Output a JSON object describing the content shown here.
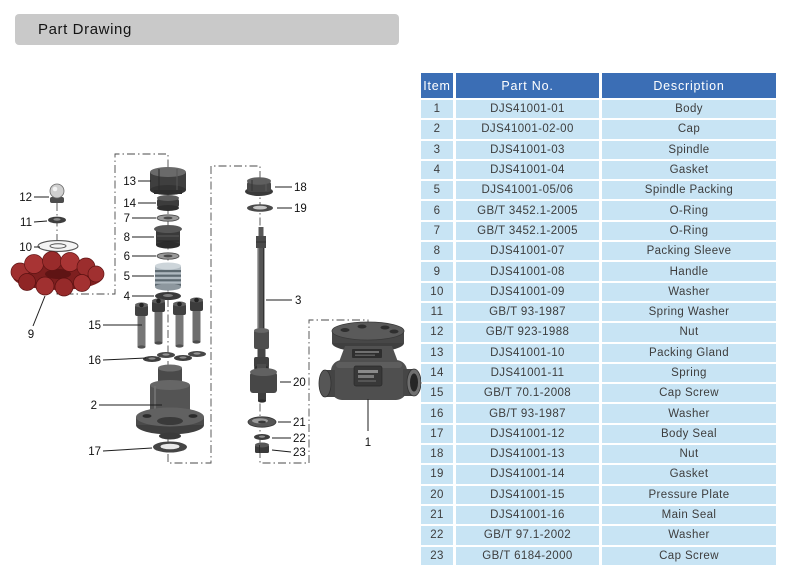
{
  "page": {
    "title": "Part Drawing"
  },
  "table": {
    "headers": [
      "Item",
      "Part No.",
      "Description"
    ],
    "rows": [
      {
        "item": "1",
        "part_no": "DJS41001-01",
        "description": "Body"
      },
      {
        "item": "2",
        "part_no": "DJS41001-02-00",
        "description": "Cap"
      },
      {
        "item": "3",
        "part_no": "DJS41001-03",
        "description": "Spindle"
      },
      {
        "item": "4",
        "part_no": "DJS41001-04",
        "description": "Gasket"
      },
      {
        "item": "5",
        "part_no": "DJS41001-05/06",
        "description": "Spindle Packing"
      },
      {
        "item": "6",
        "part_no": "GB/T 3452.1-2005",
        "description": "O-Ring"
      },
      {
        "item": "7",
        "part_no": "GB/T 3452.1-2005",
        "description": "O-Ring"
      },
      {
        "item": "8",
        "part_no": "DJS41001-07",
        "description": "Packing Sleeve"
      },
      {
        "item": "9",
        "part_no": "DJS41001-08",
        "description": "Handle"
      },
      {
        "item": "10",
        "part_no": "DJS41001-09",
        "description": "Washer"
      },
      {
        "item": "11",
        "part_no": "GB/T 93-1987",
        "description": "Spring Washer"
      },
      {
        "item": "12",
        "part_no": "GB/T 923-1988",
        "description": "Nut"
      },
      {
        "item": "13",
        "part_no": "DJS41001-10",
        "description": "Packing Gland"
      },
      {
        "item": "14",
        "part_no": "DJS41001-11",
        "description": "Spring"
      },
      {
        "item": "15",
        "part_no": "GB/T 70.1-2008",
        "description": "Cap Screw"
      },
      {
        "item": "16",
        "part_no": "GB/T 93-1987",
        "description": "Washer"
      },
      {
        "item": "17",
        "part_no": "DJS41001-12",
        "description": "Body Seal"
      },
      {
        "item": "18",
        "part_no": "DJS41001-13",
        "description": "Nut"
      },
      {
        "item": "19",
        "part_no": "DJS41001-14",
        "description": "Gasket"
      },
      {
        "item": "20",
        "part_no": "DJS41001-15",
        "description": "Pressure Plate"
      },
      {
        "item": "21",
        "part_no": "DJS41001-16",
        "description": "Main Seal"
      },
      {
        "item": "22",
        "part_no": "GB/T 97.1-2002",
        "description": "Washer"
      },
      {
        "item": "23",
        "part_no": "GB/T 6184-2000",
        "description": "Cap Screw"
      }
    ]
  },
  "diagram": {
    "callouts": [
      "1",
      "2",
      "3",
      "4",
      "5",
      "6",
      "7",
      "8",
      "9",
      "10",
      "11",
      "12",
      "13",
      "14",
      "15",
      "16",
      "17",
      "18",
      "19",
      "20",
      "21",
      "22",
      "23"
    ]
  },
  "colors": {
    "title_bar_bg": "#c9c9c9",
    "table_header_bg": "#3b6eb5",
    "table_header_text": "#ffffff",
    "table_row_bg": "#c8e4f4",
    "table_row_text": "#3d3d3d",
    "handle_red": "#a03030",
    "part_gray": "#4f4f4f"
  }
}
